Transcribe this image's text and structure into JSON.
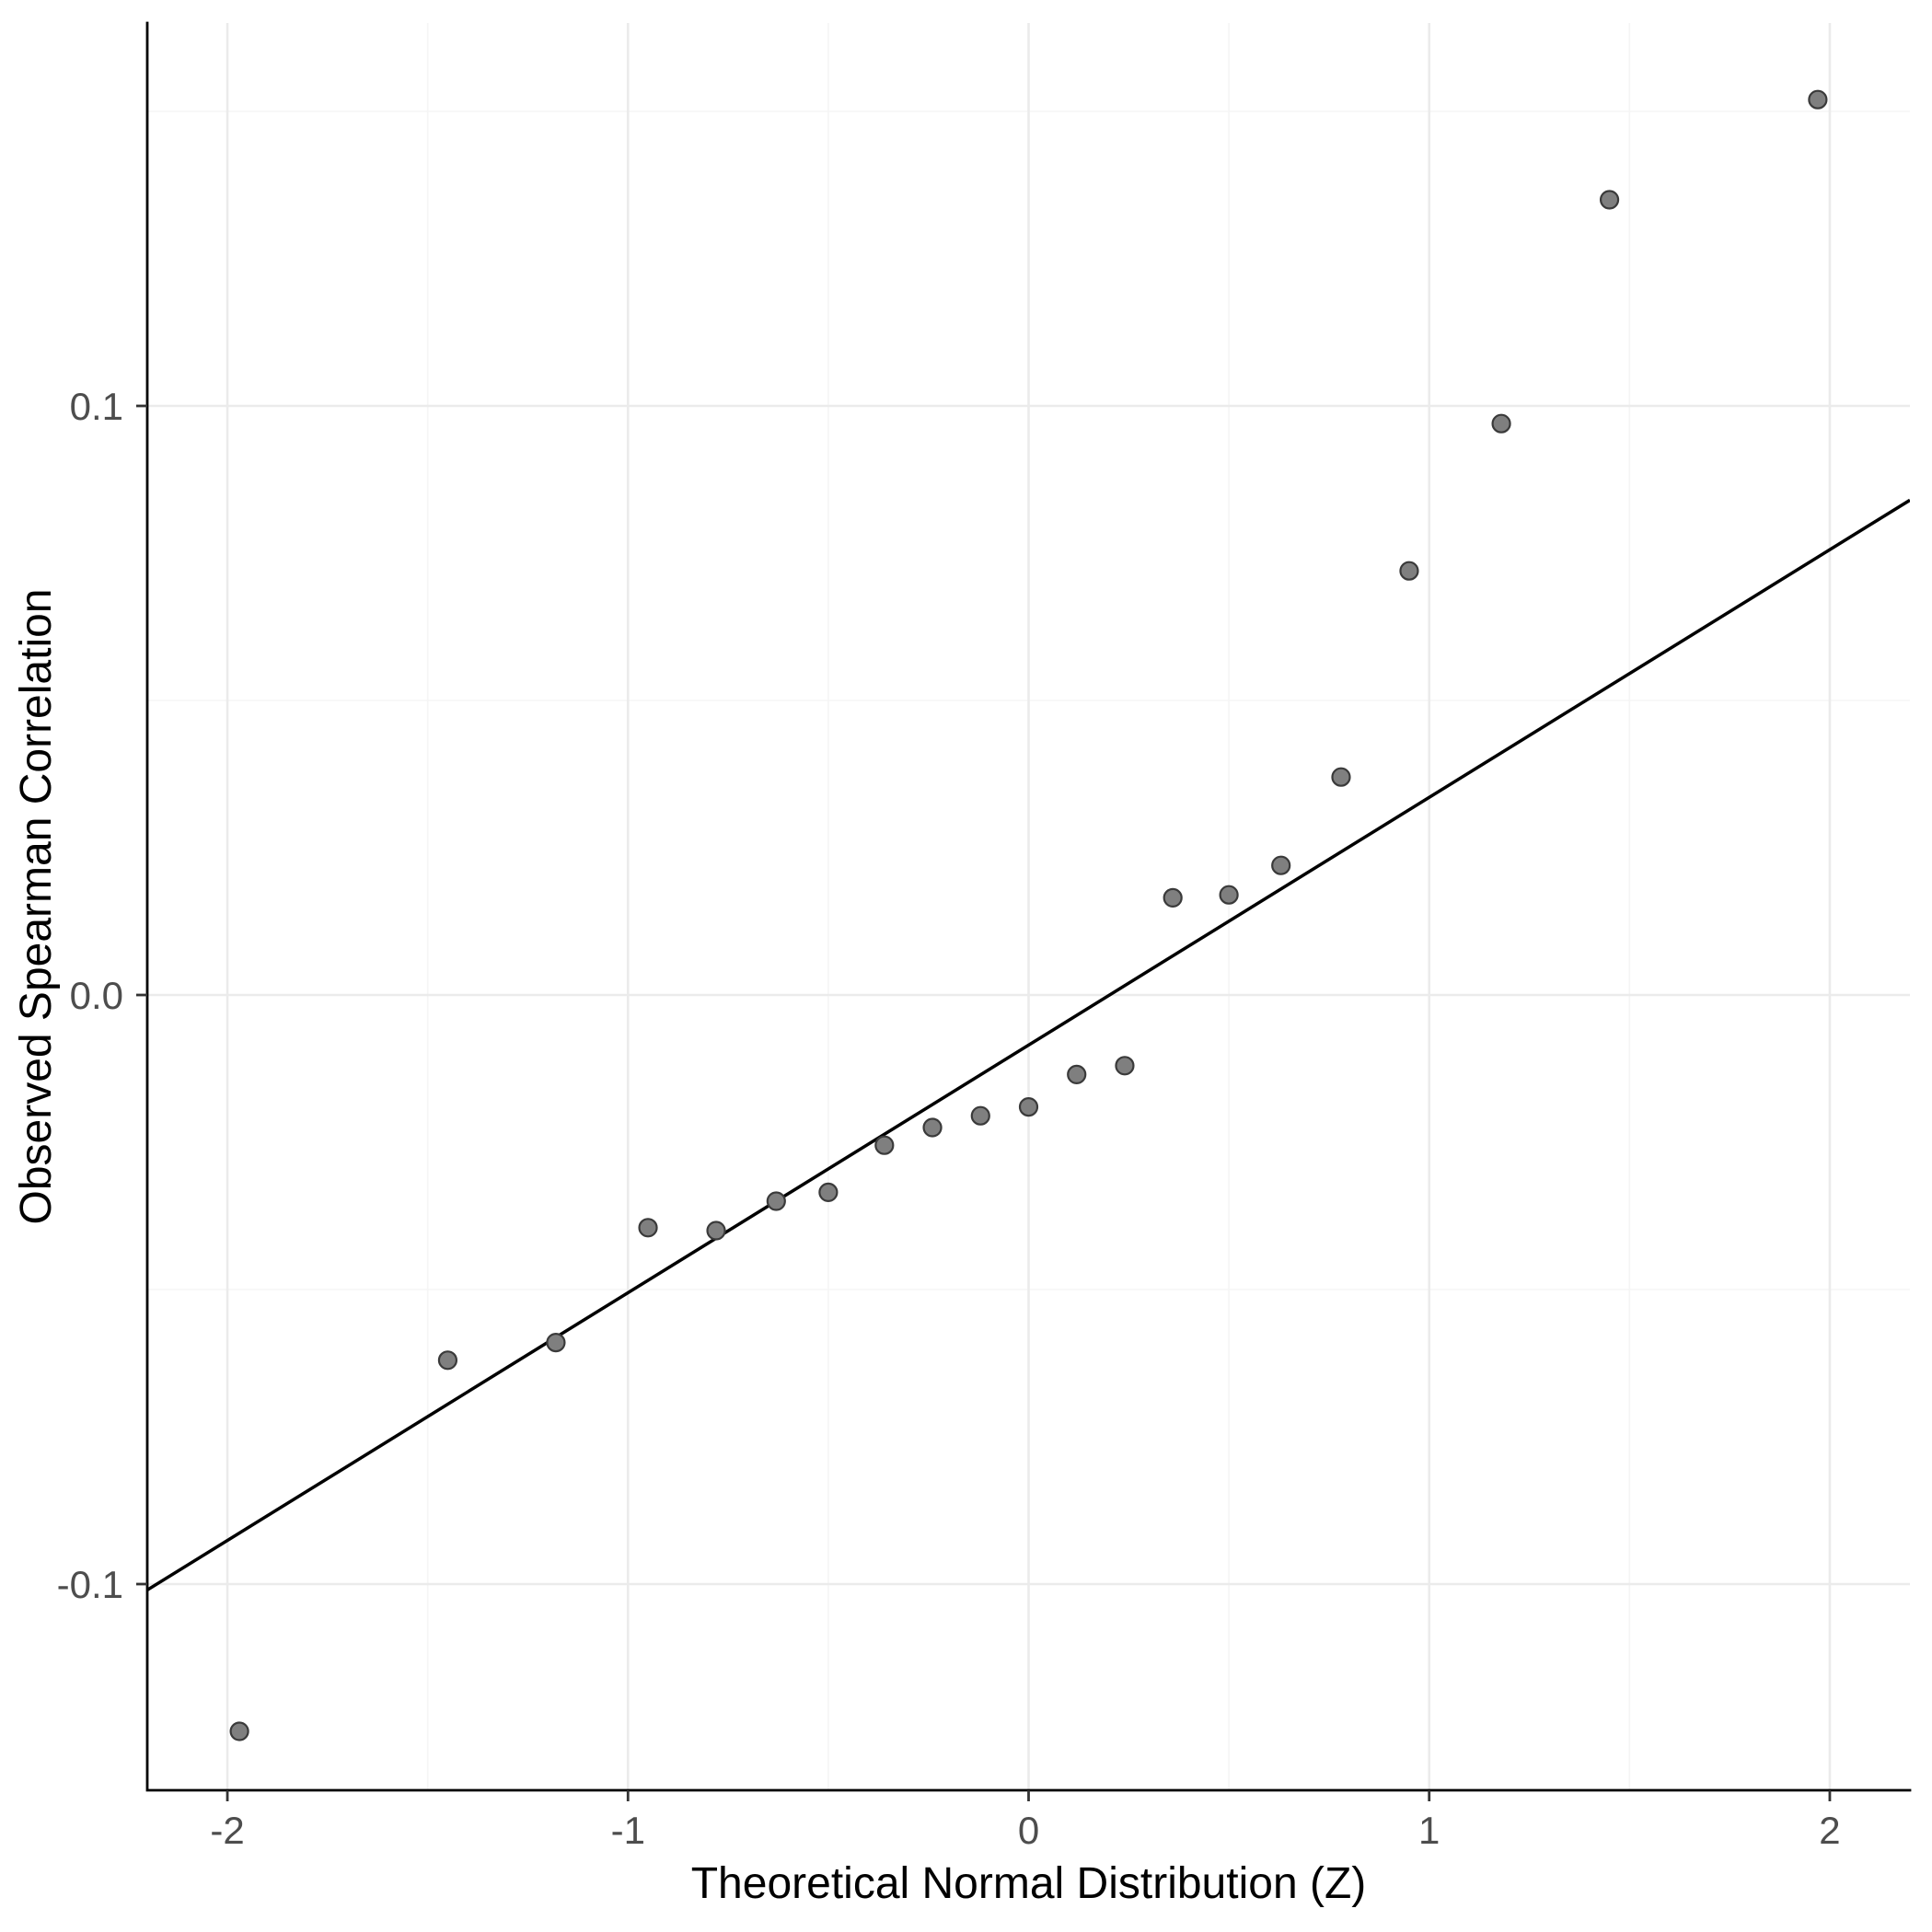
{
  "chart_data": {
    "type": "scatter",
    "title": "",
    "xlabel": "Theoretical Normal Distribution (Z)",
    "ylabel": "Observed Spearman Correlation",
    "xlim": [
      -2.2,
      2.2
    ],
    "ylim": [
      -0.135,
      0.165
    ],
    "x_major_ticks": [
      -2,
      -1,
      0,
      1,
      2
    ],
    "x_tick_labels": [
      "-2",
      "-1",
      "0",
      "1",
      "2"
    ],
    "x_minor_ticks": [
      -1.5,
      -0.5,
      0.5,
      1.5
    ],
    "y_major_ticks": [
      -0.1,
      0.0,
      0.1
    ],
    "y_tick_labels": [
      "-0.1",
      "0.0",
      "0.1"
    ],
    "y_minor_ticks": [
      -0.05,
      0.05,
      0.15
    ],
    "grid": true,
    "legend": "none",
    "points": [
      {
        "x": -1.97,
        "y": -0.125
      },
      {
        "x": -1.45,
        "y": -0.062
      },
      {
        "x": -1.18,
        "y": -0.059
      },
      {
        "x": -0.95,
        "y": -0.0395
      },
      {
        "x": -0.78,
        "y": -0.04
      },
      {
        "x": -0.63,
        "y": -0.035
      },
      {
        "x": -0.5,
        "y": -0.0335
      },
      {
        "x": -0.36,
        "y": -0.0255
      },
      {
        "x": -0.24,
        "y": -0.0225
      },
      {
        "x": -0.12,
        "y": -0.0205
      },
      {
        "x": 0.0,
        "y": -0.019
      },
      {
        "x": 0.12,
        "y": -0.0135
      },
      {
        "x": 0.24,
        "y": -0.012
      },
      {
        "x": 0.36,
        "y": 0.0165
      },
      {
        "x": 0.5,
        "y": 0.017
      },
      {
        "x": 0.63,
        "y": 0.022
      },
      {
        "x": 0.78,
        "y": 0.037
      },
      {
        "x": 0.95,
        "y": 0.072
      },
      {
        "x": 1.18,
        "y": 0.097
      },
      {
        "x": 1.45,
        "y": 0.135
      },
      {
        "x": 1.97,
        "y": 0.152
      }
    ],
    "reference_line": {
      "x1": -2.2,
      "y1": -0.101,
      "x2": 2.2,
      "y2": 0.084
    },
    "style": {
      "background": "#ffffff",
      "panel_background": "#ffffff",
      "grid_major_color": "#ebebeb",
      "grid_minor_color": "#f5f5f5",
      "axis_color": "#000000",
      "tick_color": "#333333",
      "tick_label_color": "#4d4d4d",
      "title_color": "#000000",
      "line_color": "#000000",
      "point_fill": "#7f7f7f",
      "point_stroke": "#3a3a3a",
      "point_radius": 9.5
    }
  }
}
